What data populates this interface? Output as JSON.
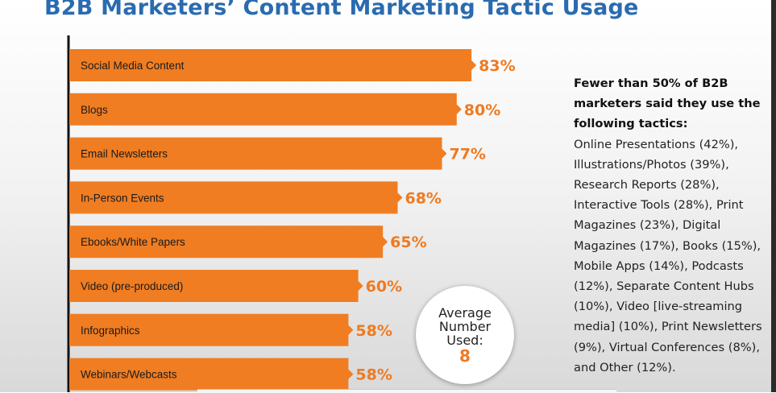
{
  "chart_data": {
    "type": "bar",
    "title": "B2B Marketers’ Content Marketing Tactic Usage",
    "orientation": "horizontal",
    "categories": [
      "Social Media Content",
      "Blogs",
      "Email Newsletters",
      "In-Person Events",
      "Ebooks/White Papers",
      "Video (pre-produced)",
      "Infographics",
      "Webinars/Webcasts"
    ],
    "values": [
      83,
      80,
      77,
      68,
      65,
      60,
      58,
      58
    ],
    "value_labels": [
      "83%",
      "80%",
      "77%",
      "68%",
      "65%",
      "60%",
      "58%",
      "58%"
    ],
    "xlim": [
      0,
      100
    ],
    "bar_color": "#f07d22",
    "value_label_color": "#ee7a22",
    "axis_color": "#111111"
  },
  "side_note": {
    "heading": "Fewer than 50% of B2B marketers said they use the following tactics:",
    "body": "Online Presentations (42%), Illustrations/Photos (39%), Research Reports (28%), Interactive Tools (28%), Print Magazines (23%), Digital Magazines (17%), Books (15%), Mobile Apps (14%), Podcasts (12%), Separate Content Hubs (10%), Video [live-streaming media] (10%), Print Newsletters (9%), Virtual Conferences (8%), and Other (12%)."
  },
  "average": {
    "label": "Average Number Used:",
    "value": "8"
  },
  "colors": {
    "title": "#2a6bb0",
    "accent": "#f07d22"
  }
}
